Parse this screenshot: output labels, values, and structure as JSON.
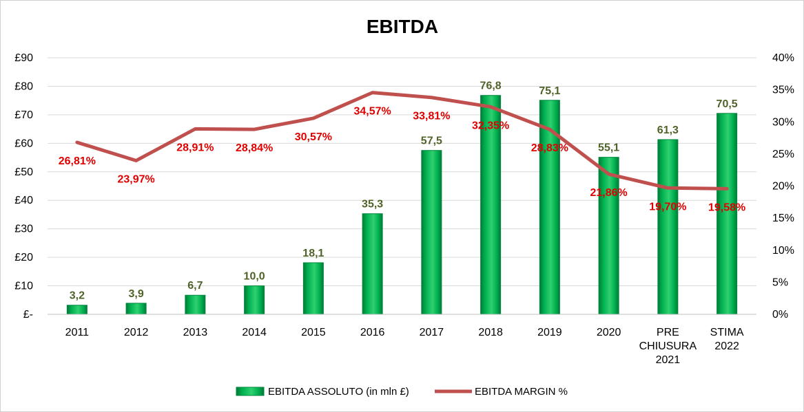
{
  "chart_data": {
    "type": "bar",
    "title": "EBITDA",
    "categories": [
      [
        "2011"
      ],
      [
        "2012"
      ],
      [
        "2013"
      ],
      [
        "2014"
      ],
      [
        "2015"
      ],
      [
        "2016"
      ],
      [
        "2017"
      ],
      [
        "2018"
      ],
      [
        "2019"
      ],
      [
        "2020"
      ],
      [
        "PRE",
        "CHIUSURA",
        "2021"
      ],
      [
        "STIMA",
        "2022"
      ]
    ],
    "series": [
      {
        "name": "EBITDA ASSOLUTO (in mln £)",
        "type": "bar",
        "axis": "left",
        "color": "#00b050",
        "values": [
          3.2,
          3.9,
          6.7,
          10.0,
          18.1,
          35.3,
          57.5,
          76.8,
          75.1,
          55.1,
          61.3,
          70.5
        ],
        "labels": [
          "3,2",
          "3,9",
          "6,7",
          "10,0",
          "18,1",
          "35,3",
          "57,5",
          "76,8",
          "75,1",
          "55,1",
          "61,3",
          "70,5"
        ],
        "label_color": "#4f6228"
      },
      {
        "name": "EBITDA MARGIN %",
        "type": "line",
        "axis": "right",
        "color": "#c0504d",
        "values": [
          26.81,
          23.97,
          28.91,
          28.84,
          30.57,
          34.57,
          33.81,
          32.35,
          28.83,
          21.86,
          19.7,
          19.58
        ],
        "labels": [
          "26,81%",
          "23,97%",
          "28,91%",
          "28,84%",
          "30,57%",
          "34,57%",
          "33,81%",
          "32,35%",
          "28,83%",
          "21,86%",
          "19,70%",
          "19,58%"
        ],
        "label_color": "#e00000"
      }
    ],
    "y_left": {
      "min": 0,
      "max": 90,
      "step": 10,
      "tick_labels": [
        "£-",
        "£10",
        "£20",
        "£30",
        "£40",
        "£50",
        "£60",
        "£70",
        "£80",
        "£90"
      ]
    },
    "y_right": {
      "min": 0,
      "max": 40,
      "step": 5,
      "tick_labels": [
        "0%",
        "5%",
        "10%",
        "15%",
        "20%",
        "25%",
        "30%",
        "35%",
        "40%"
      ]
    },
    "grid": true,
    "legend_position": "bottom"
  }
}
